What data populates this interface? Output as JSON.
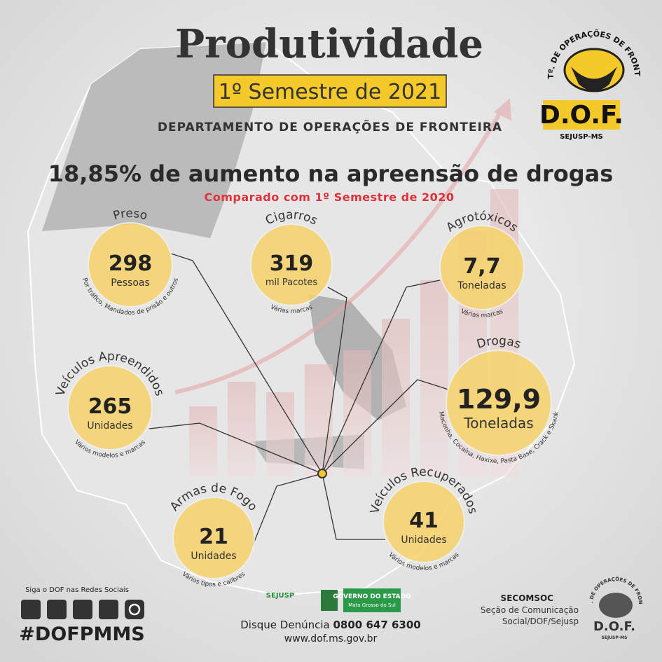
{
  "header": {
    "title": "Produtividade",
    "period": "1º Semestre de 2021",
    "department": "DEPARTAMENTO DE OPERAÇÕES DE FRONTEIRA"
  },
  "logo": {
    "arc": "DEPTº. DE OPERAÇÕES DE FRONTEIRA",
    "name": "D.O.F.",
    "org": "SEJUSP-MS"
  },
  "headline": {
    "text": "18,85% de aumento na apreensão de drogas",
    "comparison": "Comparado com 1º Semestre de 2020"
  },
  "stats": [
    {
      "label": "Preso",
      "value": "298",
      "unit": "Pessoas",
      "note": "Por tráfico, Mandados de prisão e outros"
    },
    {
      "label": "Cigarros",
      "value": "319",
      "unit": "mil Pacotes",
      "note": "Várias marcas"
    },
    {
      "label": "Agrotóxicos",
      "value": "7,7",
      "unit": "Toneladas",
      "note": "Várias marcas"
    },
    {
      "label": "Veículos Apreendidos",
      "value": "265",
      "unit": "Unidades",
      "note": "Vários modelos e marcas"
    },
    {
      "label": "Drogas",
      "value": "129,9",
      "unit": "Toneladas",
      "note": "Maconha, Cocaína, Haxixe, Pasta Base, Crack e Skank"
    },
    {
      "label": "Armas de Fogo",
      "value": "21",
      "unit": "Unidades",
      "note": "Vários tipos e calibres"
    },
    {
      "label": "Veículos Recuperados",
      "value": "41",
      "unit": "Unidades",
      "note": "Vários modelos e marcas"
    }
  ],
  "footer": {
    "social": "Siga o DOF nas Redes Sociais",
    "hashtag": "#DOFPMMS",
    "sejusp": "SEJUSP",
    "government": "GOVERNO DO ESTADO",
    "state": "Mato Grosso do Sul",
    "hotline_label": "Disque Denúncia",
    "hotline_number": "0800 647 6300",
    "website": "www.dof.ms.gov.br",
    "secomsoc": "SECOMSOC",
    "secomsoc_line1": "Seção de Comunicação",
    "secomsoc_line2": "Social/DOF/Sejusp"
  }
}
